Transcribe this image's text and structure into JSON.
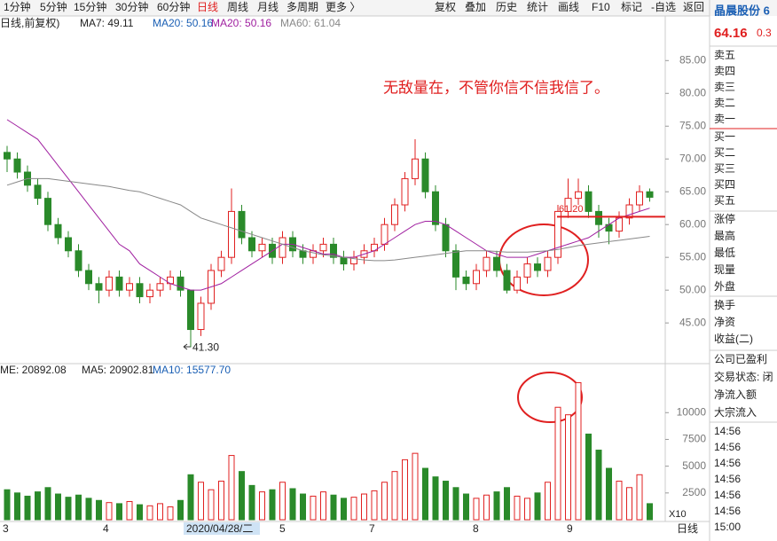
{
  "toolbar": {
    "tabs": [
      "1分钟",
      "5分钟",
      "15分钟",
      "30分钟",
      "60分钟",
      "日线",
      "周线",
      "月线",
      "多周期",
      "更多 〉"
    ],
    "buttons": [
      "复权",
      "叠加",
      "历史",
      "统计",
      "画线",
      "F10",
      "标记",
      "-自选",
      "返回"
    ]
  },
  "chart_data": {
    "type": "candlestick",
    "legend": [
      "日线,前复权)",
      "MA7: 49.11",
      "MA20: 50.16",
      "MA20: 50.16",
      "MA60: 61.04"
    ],
    "annotation": "无敌量在，不管你信不信我信了。",
    "support": {
      "value": 61.2,
      "label": "61.20"
    },
    "low_label": {
      "value": 41.3,
      "label": "41.30"
    },
    "ylim": [
      38.8,
      91.8
    ],
    "yticks": [
      {
        "value": 45,
        "label": "45.00"
      },
      {
        "value": 50,
        "label": "50.00"
      },
      {
        "value": 55,
        "label": "55.00"
      },
      {
        "value": 60,
        "label": "60.00"
      },
      {
        "value": 65,
        "label": "65.00"
      },
      {
        "value": 70,
        "label": "70.00"
      },
      {
        "value": 75,
        "label": "75.00"
      },
      {
        "value": 80,
        "label": "80.00"
      },
      {
        "value": 85,
        "label": "85.00"
      }
    ],
    "candles": [
      [
        71,
        72,
        68,
        70
      ],
      [
        70,
        71,
        67,
        68
      ],
      [
        68,
        69,
        65,
        66
      ],
      [
        66,
        67,
        63,
        64
      ],
      [
        64,
        65,
        59,
        60
      ],
      [
        60,
        61,
        57,
        58
      ],
      [
        58,
        59,
        55,
        56
      ],
      [
        56,
        57,
        52,
        53
      ],
      [
        53,
        54,
        50,
        51
      ],
      [
        51,
        52,
        48,
        50
      ],
      [
        50,
        53,
        49,
        52
      ],
      [
        52,
        53,
        49,
        50
      ],
      [
        50,
        52,
        49,
        51
      ],
      [
        51,
        52,
        48,
        49
      ],
      [
        49,
        51,
        48,
        50
      ],
      [
        50,
        52,
        49,
        51
      ],
      [
        51,
        53,
        50,
        52
      ],
      [
        52,
        53,
        49,
        50
      ],
      [
        50,
        50,
        41.3,
        44
      ],
      [
        44,
        49,
        43,
        48
      ],
      [
        48,
        54,
        47,
        53
      ],
      [
        53,
        56,
        52,
        55
      ],
      [
        55,
        65.5,
        54,
        62
      ],
      [
        62,
        63,
        57,
        58
      ],
      [
        58,
        59,
        55,
        56
      ],
      [
        56,
        58,
        55,
        57
      ],
      [
        57,
        58,
        54,
        55
      ],
      [
        55,
        59,
        54,
        58
      ],
      [
        58,
        59,
        55,
        56
      ],
      [
        56,
        57,
        54,
        55
      ],
      [
        55,
        57,
        54,
        56
      ],
      [
        56,
        58,
        55,
        57
      ],
      [
        57,
        58,
        54,
        55
      ],
      [
        55,
        56,
        53,
        54
      ],
      [
        54,
        56,
        53,
        55
      ],
      [
        55,
        57,
        54,
        56
      ],
      [
        56,
        58,
        55,
        57
      ],
      [
        57,
        61,
        56,
        60
      ],
      [
        60,
        64,
        59,
        63
      ],
      [
        63,
        68,
        62,
        67
      ],
      [
        67,
        73,
        66,
        70
      ],
      [
        70,
        71,
        64,
        65
      ],
      [
        65,
        66,
        59,
        60
      ],
      [
        60,
        61,
        55,
        56
      ],
      [
        56,
        57,
        50,
        52
      ],
      [
        52,
        53,
        50,
        51
      ],
      [
        51,
        54,
        50,
        53
      ],
      [
        53,
        56,
        52,
        55
      ],
      [
        55,
        56,
        52,
        53
      ],
      [
        53,
        54,
        49.5,
        50
      ],
      [
        50,
        53,
        49.5,
        52
      ],
      [
        52,
        55,
        51,
        54
      ],
      [
        54,
        55,
        52,
        53
      ],
      [
        53,
        56,
        52,
        55
      ],
      [
        55,
        63,
        54,
        62
      ],
      [
        62,
        67,
        61,
        64
      ],
      [
        64,
        67,
        63,
        65
      ],
      [
        65,
        66,
        61,
        62
      ],
      [
        62,
        63,
        58,
        60
      ],
      [
        60,
        61,
        57,
        59
      ],
      [
        59,
        62,
        58,
        61
      ],
      [
        61,
        64,
        60,
        63
      ],
      [
        63,
        66,
        62,
        65
      ],
      [
        65,
        65.5,
        63.5,
        64.16
      ]
    ],
    "series": [
      {
        "name": "MA20",
        "color": "#a020a0",
        "values": [
          76,
          75,
          74,
          73,
          71,
          69,
          67,
          65,
          63,
          61,
          59,
          57,
          56,
          54,
          53,
          52,
          51,
          50.5,
          50,
          50,
          50.5,
          51,
          52,
          53,
          54,
          55,
          56,
          57,
          57,
          56.5,
          56,
          55.5,
          55.5,
          55,
          55,
          55.5,
          56,
          57,
          58,
          59,
          60,
          60.5,
          60.5,
          60,
          59,
          58,
          57,
          56,
          55.5,
          55,
          55,
          55,
          55.5,
          56,
          56.5,
          57,
          57.5,
          58,
          59,
          60,
          61,
          61.5,
          62,
          62.5
        ]
      },
      {
        "name": "MA60",
        "color": "#888888",
        "values": [
          66,
          66.5,
          67,
          67,
          67,
          66.8,
          66.6,
          66.4,
          66.2,
          66,
          65.8,
          65.5,
          65.2,
          65,
          64.5,
          64,
          63.5,
          63,
          62,
          61,
          60.5,
          60,
          59.5,
          59,
          58.5,
          58,
          57.5,
          57,
          56.5,
          56,
          55.7,
          55.4,
          55.2,
          55,
          54.8,
          54.6,
          54.5,
          54.5,
          54.6,
          54.8,
          55,
          55.2,
          55.4,
          55.6,
          55.8,
          56,
          56,
          56,
          55.9,
          55.8,
          55.8,
          55.8,
          55.9,
          56,
          56.2,
          56.5,
          56.8,
          57,
          57.2,
          57.4,
          57.6,
          57.8,
          58,
          58.2
        ]
      }
    ],
    "volume": {
      "legend": [
        "ME: 20892.08",
        "MA5: 20902.81",
        "MA10: 15577.70"
      ],
      "unit": "X10",
      "ylim": [
        0,
        13750
      ],
      "yticks": [
        2500,
        5000,
        7500,
        10000
      ],
      "values": [
        2800,
        2500,
        2200,
        2600,
        3000,
        2400,
        2100,
        2300,
        2000,
        1800,
        1600,
        1500,
        1700,
        1400,
        1300,
        1500,
        1200,
        1800,
        4200,
        3500,
        2800,
        3600,
        6000,
        4500,
        3200,
        2600,
        2800,
        3500,
        2900,
        2400,
        2200,
        2600,
        2300,
        2000,
        2100,
        2400,
        2700,
        3500,
        4500,
        5600,
        6200,
        4800,
        4000,
        3600,
        3000,
        2400,
        2000,
        2300,
        2600,
        3000,
        2200,
        2000,
        2500,
        3500,
        10500,
        9800,
        12800,
        8000,
        6500,
        4800,
        3600,
        3000,
        4200,
        1500
      ]
    },
    "date_labels": [
      "3",
      "4",
      "2020/04/28/二",
      "5",
      "7",
      "8",
      "9"
    ],
    "period": "日线"
  },
  "quote": {
    "name": "晶晨股份 6",
    "price": "64.16",
    "change": "0.3",
    "sell": [
      "卖五",
      "卖四",
      "卖三",
      "卖二",
      "卖一"
    ],
    "buy": [
      "买一",
      "买二",
      "买三",
      "买四",
      "买五"
    ],
    "stats": [
      "涨停",
      "最高",
      "最低",
      "现量",
      "外盘"
    ],
    "fin": [
      "换手",
      "净资",
      "收益(二)"
    ],
    "status": [
      "公司已盈利",
      "交易状态: 闭",
      "净流入额",
      "大宗流入"
    ],
    "times": [
      "14:56",
      "14:56",
      "14:56",
      "14:56",
      "14:56",
      "14:56",
      "15:00"
    ]
  }
}
